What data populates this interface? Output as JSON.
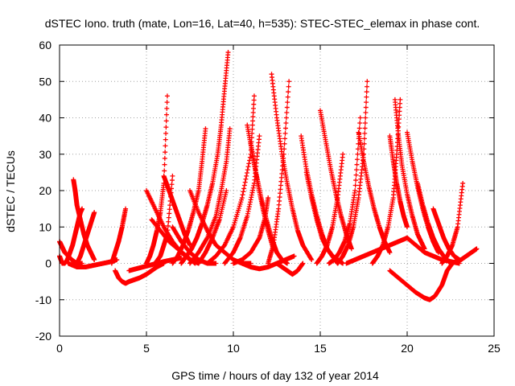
{
  "chart_data": {
    "type": "scatter",
    "title": "dSTEC Iono. truth (mate, Lon=16, Lat=40, h=535): STEC-STEC_elemax in phase cont.",
    "xlabel": "GPS time / hours of day 132 of year 2014",
    "ylabel": "dSTEC  / TECUs",
    "xlim": [
      0,
      25
    ],
    "ylim": [
      -20,
      60
    ],
    "xticks": [
      0,
      5,
      10,
      15,
      20,
      25
    ],
    "yticks": [
      -20,
      -10,
      0,
      10,
      20,
      30,
      40,
      50,
      60
    ],
    "xtick_labels": [
      "0",
      "5",
      "10",
      "15",
      "20",
      "25"
    ],
    "ytick_labels": [
      "-20",
      "-10",
      "0",
      "10",
      "20",
      "30",
      "40",
      "50",
      "60"
    ],
    "grid": true,
    "marker": "plus",
    "series_color": "#ff0000",
    "series": [
      {
        "x": [
          0.0,
          0.1,
          0.2,
          0.3,
          0.5,
          0.7,
          0.9,
          1.1,
          1.3
        ],
        "y": [
          6,
          5,
          4,
          3,
          2,
          1,
          0.3,
          0,
          0
        ]
      },
      {
        "x": [
          0.0,
          0.15,
          0.3,
          0.45,
          0.6,
          0.75,
          0.9,
          1.0,
          1.1,
          1.2,
          1.3
        ],
        "y": [
          2,
          0,
          0,
          1,
          3,
          5,
          8,
          10,
          12,
          14,
          15
        ]
      },
      {
        "x": [
          0.8,
          0.9,
          1.0,
          1.2,
          1.4,
          1.6,
          1.8,
          2.0
        ],
        "y": [
          23,
          20,
          16,
          12,
          8,
          5,
          3,
          1
        ]
      },
      {
        "x": [
          1.0,
          1.2,
          1.4,
          1.6,
          1.8,
          2.0
        ],
        "y": [
          0,
          2,
          5,
          8,
          11,
          14
        ]
      },
      {
        "x": [
          0.5,
          1.0,
          1.5,
          2.0,
          2.5,
          3.0,
          3.3
        ],
        "y": [
          0,
          -1,
          -1,
          -0.5,
          0,
          0.5,
          1
        ]
      },
      {
        "x": [
          3.0,
          3.2,
          3.4,
          3.6,
          3.8
        ],
        "y": [
          0,
          3,
          6,
          10,
          15
        ]
      },
      {
        "x": [
          3.2,
          3.4,
          3.6,
          3.8,
          4.0,
          4.3,
          4.6,
          5.0,
          5.3,
          5.6,
          6.0
        ],
        "y": [
          -2,
          -4,
          -5,
          -5.5,
          -5,
          -4.5,
          -4,
          -3,
          -2,
          -1,
          0
        ]
      },
      {
        "x": [
          4.0,
          4.4,
          4.8,
          5.2,
          5.6,
          6.0,
          6.5,
          7.0
        ],
        "y": [
          -2,
          -1.5,
          -1,
          -0.5,
          0,
          0.5,
          1,
          1.5
        ]
      },
      {
        "x": [
          5.0,
          5.2,
          5.4,
          5.6,
          5.8,
          6.0,
          6.2
        ],
        "y": [
          0,
          2,
          5,
          9,
          14,
          22,
          46
        ]
      },
      {
        "x": [
          5.5,
          5.8,
          6.0,
          6.2,
          6.5
        ],
        "y": [
          0,
          2,
          5,
          8,
          24
        ]
      },
      {
        "x": [
          6.0,
          6.3,
          6.6,
          6.9,
          7.2,
          7.5
        ],
        "y": [
          24,
          20,
          16,
          12,
          8,
          5
        ]
      },
      {
        "x": [
          5.0,
          5.5,
          6.0,
          6.5,
          7.0,
          7.5,
          8.0
        ],
        "y": [
          20,
          15,
          10,
          6,
          3,
          1,
          0
        ]
      },
      {
        "x": [
          5.3,
          5.8,
          6.3,
          6.8,
          7.3,
          7.8
        ],
        "y": [
          12,
          9,
          6,
          4,
          2,
          0
        ]
      },
      {
        "x": [
          6.5,
          6.8,
          7.1,
          7.4,
          7.7,
          8.0,
          8.2,
          8.4
        ],
        "y": [
          0,
          2,
          5,
          9,
          14,
          20,
          28,
          37
        ]
      },
      {
        "x": [
          7.0,
          7.3,
          7.6,
          7.9,
          8.2,
          8.5,
          8.8,
          9.1,
          9.3,
          9.5,
          9.7
        ],
        "y": [
          0,
          2,
          4,
          7,
          11,
          16,
          22,
          30,
          38,
          48,
          58
        ]
      },
      {
        "x": [
          7.5,
          8.0,
          8.5,
          9.0,
          9.3,
          9.6,
          9.8
        ],
        "y": [
          0,
          3,
          7,
          13,
          20,
          28,
          37
        ]
      },
      {
        "x": [
          8.0,
          8.4,
          8.8,
          9.2,
          9.6
        ],
        "y": [
          0,
          3,
          7,
          12,
          20
        ]
      },
      {
        "x": [
          6.5,
          7.0,
          7.5,
          8.0,
          8.5,
          9.0
        ],
        "y": [
          10,
          6,
          3,
          1,
          0,
          0
        ]
      },
      {
        "x": [
          7.5,
          8.0,
          8.5,
          9.0,
          9.5,
          10.0,
          10.5,
          11.0
        ],
        "y": [
          20,
          14,
          9,
          5,
          3,
          1,
          0,
          0
        ]
      },
      {
        "x": [
          8.5,
          9.0,
          9.5,
          10.0,
          10.5,
          11.0,
          11.2
        ],
        "y": [
          0,
          2,
          5,
          10,
          18,
          30,
          46
        ]
      },
      {
        "x": [
          9.5,
          10.0,
          10.4,
          10.8,
          11.2,
          11.5
        ],
        "y": [
          0,
          3,
          7,
          13,
          22,
          35
        ]
      },
      {
        "x": [
          10.0,
          10.5,
          11.0,
          11.5,
          11.8,
          12.0
        ],
        "y": [
          0,
          1,
          3,
          7,
          12,
          18
        ]
      },
      {
        "x": [
          10.8,
          11.1,
          11.4,
          11.7,
          12.0,
          12.3
        ],
        "y": [
          38,
          30,
          22,
          15,
          9,
          4
        ]
      },
      {
        "x": [
          11.0,
          11.3,
          11.6,
          11.9,
          12.2,
          12.5,
          12.8,
          13.1
        ],
        "y": [
          33,
          25,
          18,
          12,
          7,
          3,
          1,
          0
        ]
      },
      {
        "x": [
          10.5,
          11.0,
          11.5,
          12.0,
          12.5,
          13.0,
          13.5
        ],
        "y": [
          0,
          -1,
          -1.5,
          -1,
          0,
          1,
          2
        ]
      },
      {
        "x": [
          12.2,
          12.5,
          12.8,
          13.1,
          13.4,
          13.7,
          14.0,
          14.5
        ],
        "y": [
          52,
          40,
          30,
          22,
          15,
          9,
          5,
          1
        ]
      },
      {
        "x": [
          12.0,
          12.3,
          12.6,
          12.9,
          13.2
        ],
        "y": [
          0,
          5,
          15,
          30,
          50
        ]
      },
      {
        "x": [
          12.5,
          12.8,
          13.1,
          13.4,
          13.7,
          14.0
        ],
        "y": [
          0,
          -1,
          -2,
          -3,
          -2,
          0
        ]
      },
      {
        "x": [
          13.9,
          14.2,
          14.5,
          14.8,
          15.1,
          15.4,
          15.7,
          16.0
        ],
        "y": [
          35,
          26,
          19,
          13,
          8,
          4,
          2,
          0
        ]
      },
      {
        "x": [
          14.2,
          14.5,
          14.8,
          15.1,
          15.4,
          15.7,
          16.0,
          16.3
        ],
        "y": [
          25,
          18,
          12,
          7,
          4,
          2,
          1,
          0
        ]
      },
      {
        "x": [
          14.8,
          15.1,
          15.4,
          15.7,
          16.0,
          16.3
        ],
        "y": [
          0,
          2,
          5,
          10,
          18,
          30
        ]
      },
      {
        "x": [
          15.0,
          15.3,
          15.6,
          15.9,
          16.2,
          16.5,
          16.8
        ],
        "y": [
          42,
          34,
          26,
          19,
          13,
          8,
          4
        ]
      },
      {
        "x": [
          15.5,
          15.8,
          16.1,
          16.4,
          16.7,
          17.0,
          17.3
        ],
        "y": [
          0,
          1,
          3,
          6,
          11,
          20,
          40
        ]
      },
      {
        "x": [
          16.0,
          16.3,
          16.6,
          16.9,
          17.2,
          17.5,
          17.7
        ],
        "y": [
          0,
          2,
          5,
          10,
          18,
          30,
          50
        ]
      },
      {
        "x": [
          17.2,
          17.5,
          17.8,
          18.1,
          18.4,
          18.7,
          19.0
        ],
        "y": [
          36,
          28,
          21,
          15,
          10,
          6,
          3
        ]
      },
      {
        "x": [
          16.5,
          17.0,
          17.5,
          18.0,
          18.5,
          19.0,
          19.5,
          20.0
        ],
        "y": [
          0,
          1,
          2,
          3,
          4,
          5,
          6,
          7
        ]
      },
      {
        "x": [
          18.0,
          18.3,
          18.6,
          18.9,
          19.2,
          19.4,
          19.6
        ],
        "y": [
          0,
          2,
          5,
          10,
          18,
          30,
          45
        ]
      },
      {
        "x": [
          19.3,
          19.5,
          19.7,
          20.0,
          20.3,
          20.6,
          21.0
        ],
        "y": [
          45,
          35,
          27,
          19,
          13,
          8,
          4
        ]
      },
      {
        "x": [
          19.0,
          19.2,
          19.4,
          19.6,
          19.8,
          20.0
        ],
        "y": [
          35,
          28,
          22,
          17,
          13,
          10
        ]
      },
      {
        "x": [
          20.0,
          20.3,
          20.6,
          20.9,
          21.2,
          21.5,
          21.8
        ],
        "y": [
          36,
          28,
          21,
          15,
          10,
          6,
          3
        ]
      },
      {
        "x": [
          20.6,
          20.9,
          21.2,
          21.5,
          21.8,
          22.1,
          22.5
        ],
        "y": [
          22,
          16,
          11,
          7,
          4,
          2,
          0
        ]
      },
      {
        "x": [
          19.0,
          19.5,
          20.0,
          20.5,
          21.0,
          21.3,
          21.6,
          22.0,
          22.3,
          22.6
        ],
        "y": [
          -2,
          -4,
          -6,
          -8,
          -9.5,
          -10,
          -9,
          -6,
          -2,
          0
        ]
      },
      {
        "x": [
          21.5,
          21.8,
          22.1,
          22.4,
          22.7,
          23.0
        ],
        "y": [
          15,
          11,
          7,
          4,
          2,
          1
        ]
      },
      {
        "x": [
          22.0,
          22.3,
          22.6,
          22.9,
          23.2
        ],
        "y": [
          0,
          2,
          5,
          10,
          22
        ]
      },
      {
        "x": [
          22.5,
          22.8,
          23.1,
          23.4,
          23.7,
          24.0
        ],
        "y": [
          0,
          0.5,
          1,
          2,
          3,
          4
        ]
      },
      {
        "x": [
          20.0,
          20.5,
          21.0,
          21.5,
          22.0,
          22.5,
          23.0
        ],
        "y": [
          7,
          5,
          3,
          2,
          1,
          0.5,
          0
        ]
      }
    ]
  }
}
